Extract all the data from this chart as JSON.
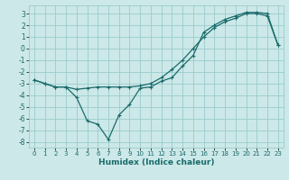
{
  "xlabel": "Humidex (Indice chaleur)",
  "background_color": "#cce8e8",
  "grid_color": "#99cccc",
  "line_color": "#1a6b6b",
  "xlim": [
    -0.5,
    23.5
  ],
  "ylim": [
    -8.5,
    3.7
  ],
  "xticks": [
    0,
    1,
    2,
    3,
    4,
    5,
    6,
    7,
    8,
    9,
    10,
    11,
    12,
    13,
    14,
    15,
    16,
    17,
    18,
    19,
    20,
    21,
    22,
    23
  ],
  "yticks": [
    -8,
    -7,
    -6,
    -5,
    -4,
    -3,
    -2,
    -1,
    0,
    1,
    2,
    3
  ],
  "line1_x": [
    0,
    1,
    2,
    3,
    4,
    5,
    6,
    7,
    8,
    9,
    10,
    11,
    12,
    13,
    14,
    15,
    16,
    17,
    18,
    19,
    20,
    21,
    22,
    23
  ],
  "line1_y": [
    -2.7,
    -3.0,
    -3.3,
    -3.3,
    -4.2,
    -6.2,
    -6.5,
    -7.8,
    -5.7,
    -4.8,
    -3.4,
    -3.3,
    -2.8,
    -2.5,
    -1.5,
    -0.6,
    1.4,
    2.0,
    2.5,
    2.8,
    3.1,
    3.1,
    3.0,
    0.3
  ],
  "line2_x": [
    0,
    1,
    2,
    3,
    4,
    5,
    6,
    7,
    8,
    9,
    10,
    11,
    12,
    13,
    14,
    15,
    16,
    17,
    18,
    19,
    20,
    21,
    22,
    23
  ],
  "line2_y": [
    -2.7,
    -3.0,
    -3.3,
    -3.3,
    -3.5,
    -3.4,
    -3.3,
    -3.3,
    -3.3,
    -3.3,
    -3.2,
    -3.0,
    -2.5,
    -1.8,
    -1.0,
    0.0,
    1.0,
    1.8,
    2.3,
    2.6,
    3.0,
    3.0,
    2.8,
    0.3
  ],
  "xtick_fontsize": 5.0,
  "ytick_fontsize": 5.5,
  "xlabel_fontsize": 6.5
}
